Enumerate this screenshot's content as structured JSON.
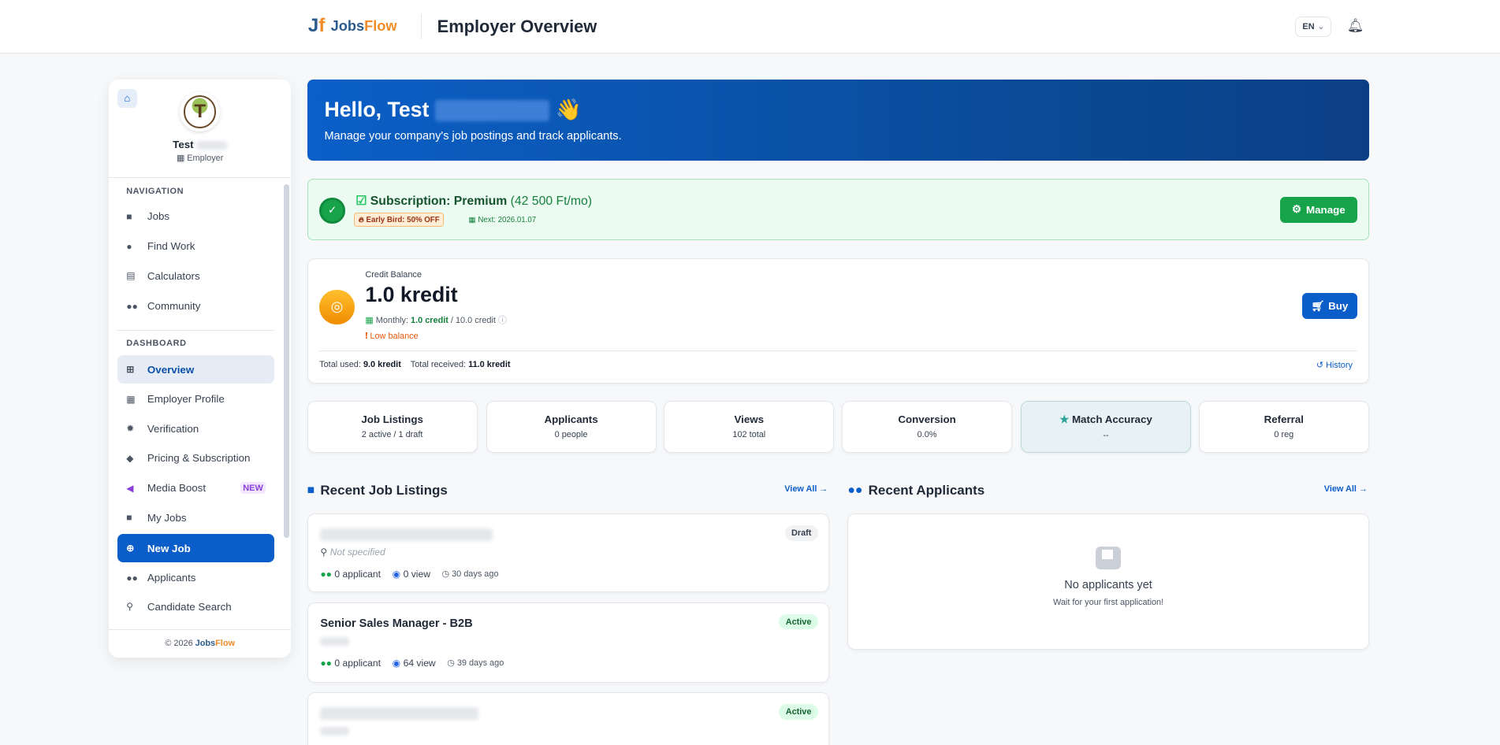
{
  "header": {
    "brand_part1": "Jobs",
    "brand_part2": "Flow",
    "title": "Employer Overview",
    "language": "EN"
  },
  "sidebar": {
    "user_first": "Test",
    "role": "Employer",
    "nav_section": "NAVIGATION",
    "nav_items": [
      {
        "label": "Jobs",
        "icon": "briefcase"
      },
      {
        "label": "Find Work",
        "icon": "user-tie"
      },
      {
        "label": "Calculators",
        "icon": "calculator"
      },
      {
        "label": "Community",
        "icon": "users"
      }
    ],
    "dash_section": "DASHBOARD",
    "dash_items": [
      {
        "label": "Overview",
        "icon": "grid"
      },
      {
        "label": "Employer Profile",
        "icon": "building"
      },
      {
        "label": "Verification",
        "icon": "badge"
      },
      {
        "label": "Pricing & Subscription",
        "icon": "tags"
      },
      {
        "label": "Media Boost",
        "icon": "megaphone",
        "badge": "NEW"
      },
      {
        "label": "My Jobs",
        "icon": "briefcase"
      },
      {
        "label": "New Job",
        "icon": "plus-circle"
      },
      {
        "label": "Applicants",
        "icon": "users"
      },
      {
        "label": "Candidate Search",
        "icon": "search"
      }
    ],
    "footer_prefix": "© 2026 ",
    "footer_brand1": "Jobs",
    "footer_brand2": "Flow"
  },
  "welcome": {
    "greeting": "Hello, Test",
    "emoji": "👋",
    "subtitle": "Manage your company's job postings and track applicants."
  },
  "subscription": {
    "title": "Subscription: Premium",
    "price": "(42 500 Ft/mo)",
    "promo": "Early Bird: 50% OFF",
    "next": "Next: 2026.01.07",
    "manage_label": "Manage"
  },
  "credit": {
    "label": "Credit Balance",
    "amount": "1.0 kredit",
    "monthly_label": "Monthly:",
    "monthly_value": "1.0 credit",
    "monthly_total": "/ 10.0 credit",
    "warning": "Low balance",
    "buy_label": "Buy",
    "used_label": "Total used:",
    "used_value": "9.0 kredit",
    "received_label": "Total received:",
    "received_value": "11.0 kredit",
    "history_label": "History"
  },
  "stats": [
    {
      "title": "Job Listings",
      "value": "2 active / 1 draft"
    },
    {
      "title": "Applicants",
      "value": "0 people"
    },
    {
      "title": "Views",
      "value": "102 total"
    },
    {
      "title": "Conversion",
      "value": "0.0%"
    },
    {
      "title": "Match Accuracy",
      "value": "--"
    },
    {
      "title": "Referral",
      "value": "0 reg"
    }
  ],
  "jobs": {
    "heading": "Recent Job Listings",
    "view_all": "View All",
    "items": [
      {
        "title": "",
        "status": "Draft",
        "location": "Not specified",
        "applicants": "0 applicant",
        "views": "0 view",
        "age": "30 days ago"
      },
      {
        "title": "Senior Sales Manager - B2B",
        "status": "Active",
        "applicants": "0 applicant",
        "views": "64 view",
        "age": "39 days ago"
      },
      {
        "title": "",
        "status": "Active"
      }
    ]
  },
  "applicants": {
    "heading": "Recent Applicants",
    "view_all": "View All",
    "empty_title": "No applicants yet",
    "empty_sub": "Wait for your first application!"
  },
  "colors": {
    "primary": "#0b5ec9",
    "success": "#16a34a",
    "warning": "#ea580c"
  }
}
